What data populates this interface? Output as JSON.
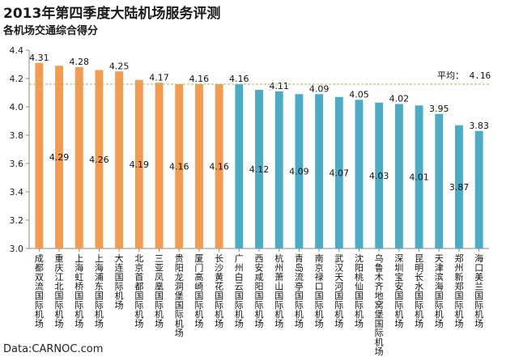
{
  "chart_data": {
    "type": "bar",
    "title": "2013年第四季度大陆机场服务评测",
    "subtitle": "各机场交通综合得分",
    "source": "Data:CARNOC.com",
    "ylim": [
      3.0,
      4.4
    ],
    "yticks": [
      "3.0",
      "3.2",
      "3.4",
      "3.6",
      "3.8",
      "4.0",
      "4.2",
      "4.4"
    ],
    "average": {
      "label": "平均：",
      "value": 4.16
    },
    "colors": {
      "above": "#F39C4F",
      "below": "#4BACC6",
      "average_line": "#9BBB59"
    },
    "categories": [
      "成都双流国际机场",
      "重庆江北国际机场",
      "上海虹桥国际机场",
      "上海浦东国际机场",
      "大连国际机场",
      "北京首都国际机场",
      "三亚凤凰国际机场",
      "贵阳龙洞堡国际机场",
      "厦门高崎国际机场",
      "长沙黄花国际机场",
      "广州白云国际机场",
      "西安咸阳国际机场",
      "杭州萧山国际机场",
      "青岛流亭国际机场",
      "南京禄口国际机场",
      "武汉天河国际机场",
      "沈阳桃仙国际机场",
      "乌鲁木齐地窝堡国际机场",
      "深圳宝安国际机场",
      "昆明长水国际机场",
      "天津滨海国际机场",
      "郑州新郑国际机场",
      "海口美兰国际机场"
    ],
    "values": [
      4.31,
      4.29,
      4.28,
      4.26,
      4.25,
      4.19,
      4.17,
      4.16,
      4.16,
      4.16,
      4.16,
      4.12,
      4.11,
      4.09,
      4.09,
      4.07,
      4.05,
      4.03,
      4.02,
      4.01,
      3.95,
      3.87,
      3.83
    ],
    "label_position": [
      "top",
      "mid",
      "top",
      "mid",
      "top",
      "mid",
      "top",
      "mid",
      "top",
      "mid",
      "top",
      "mid",
      "top",
      "mid",
      "top",
      "mid",
      "top",
      "mid",
      "top",
      "mid",
      "top",
      "mid",
      "top"
    ],
    "series_group": [
      "above",
      "above",
      "above",
      "above",
      "above",
      "above",
      "above",
      "above",
      "above",
      "above",
      "below",
      "below",
      "below",
      "below",
      "below",
      "below",
      "below",
      "below",
      "below",
      "below",
      "below",
      "below",
      "below"
    ]
  }
}
